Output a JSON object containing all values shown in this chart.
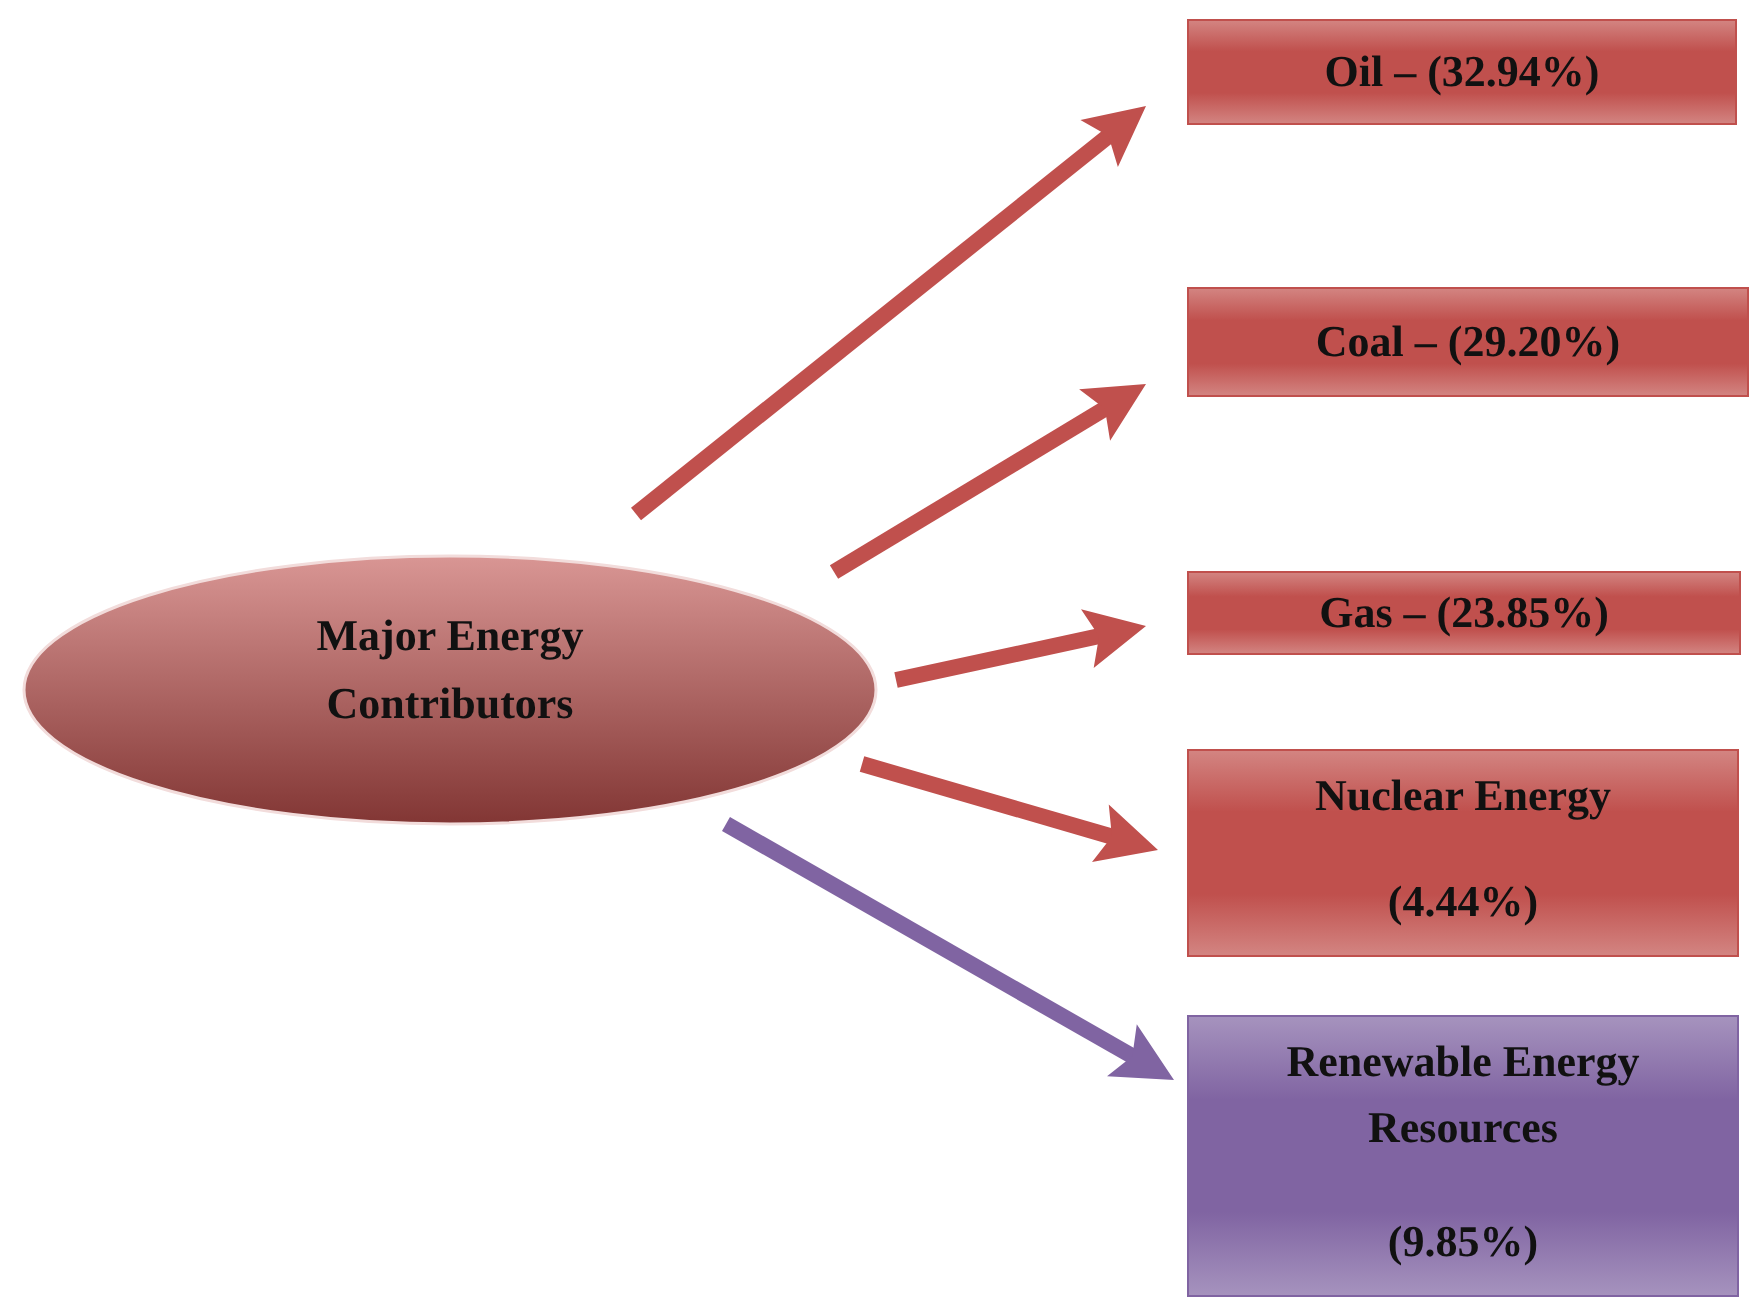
{
  "chart_data": {
    "type": "other",
    "title": "Major Energy Contributors",
    "categories": [
      "Oil",
      "Coal",
      "Gas",
      "Nuclear Energy",
      "Renewable Energy Resources"
    ],
    "values": [
      32.94,
      29.2,
      23.85,
      4.44,
      9.85
    ],
    "value_labels": [
      "– (32.94%)",
      "– (29.20%)",
      "– (23.85%)",
      "(4.44%)",
      "(9.85%)"
    ],
    "colors": [
      "#c0504d",
      "#c0504d",
      "#c0504d",
      "#c0504d",
      "#8064a2"
    ]
  }
}
